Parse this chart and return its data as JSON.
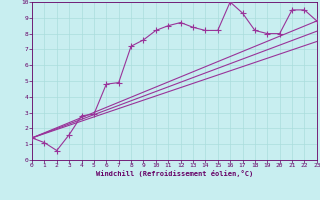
{
  "xlabel": "Windchill (Refroidissement éolien,°C)",
  "xlim": [
    0,
    23
  ],
  "ylim": [
    0,
    10
  ],
  "xticks": [
    0,
    1,
    2,
    3,
    4,
    5,
    6,
    7,
    8,
    9,
    10,
    11,
    12,
    13,
    14,
    15,
    16,
    17,
    18,
    19,
    20,
    21,
    22,
    23
  ],
  "yticks": [
    0,
    1,
    2,
    3,
    4,
    5,
    6,
    7,
    8,
    9,
    10
  ],
  "background_color": "#c8eef0",
  "grid_color": "#aadddd",
  "line_color": "#993399",
  "line1_x": [
    0,
    1,
    2,
    3,
    4,
    5,
    6,
    7,
    8,
    9,
    10,
    11,
    12,
    13,
    14,
    15,
    16,
    17,
    18,
    19,
    20,
    21,
    22,
    23
  ],
  "line1_y": [
    1.4,
    1.1,
    0.6,
    1.6,
    2.8,
    2.9,
    4.8,
    4.9,
    7.2,
    7.6,
    8.2,
    8.5,
    8.7,
    8.4,
    8.2,
    8.2,
    10.0,
    9.3,
    8.2,
    8.0,
    8.0,
    9.5,
    9.5,
    8.8
  ],
  "line2_x": [
    0,
    23
  ],
  "line2_y": [
    1.4,
    8.8
  ],
  "line3_x": [
    0,
    23
  ],
  "line3_y": [
    1.4,
    7.5
  ],
  "line4_x": [
    0,
    23
  ],
  "line4_y": [
    1.4,
    8.15
  ]
}
